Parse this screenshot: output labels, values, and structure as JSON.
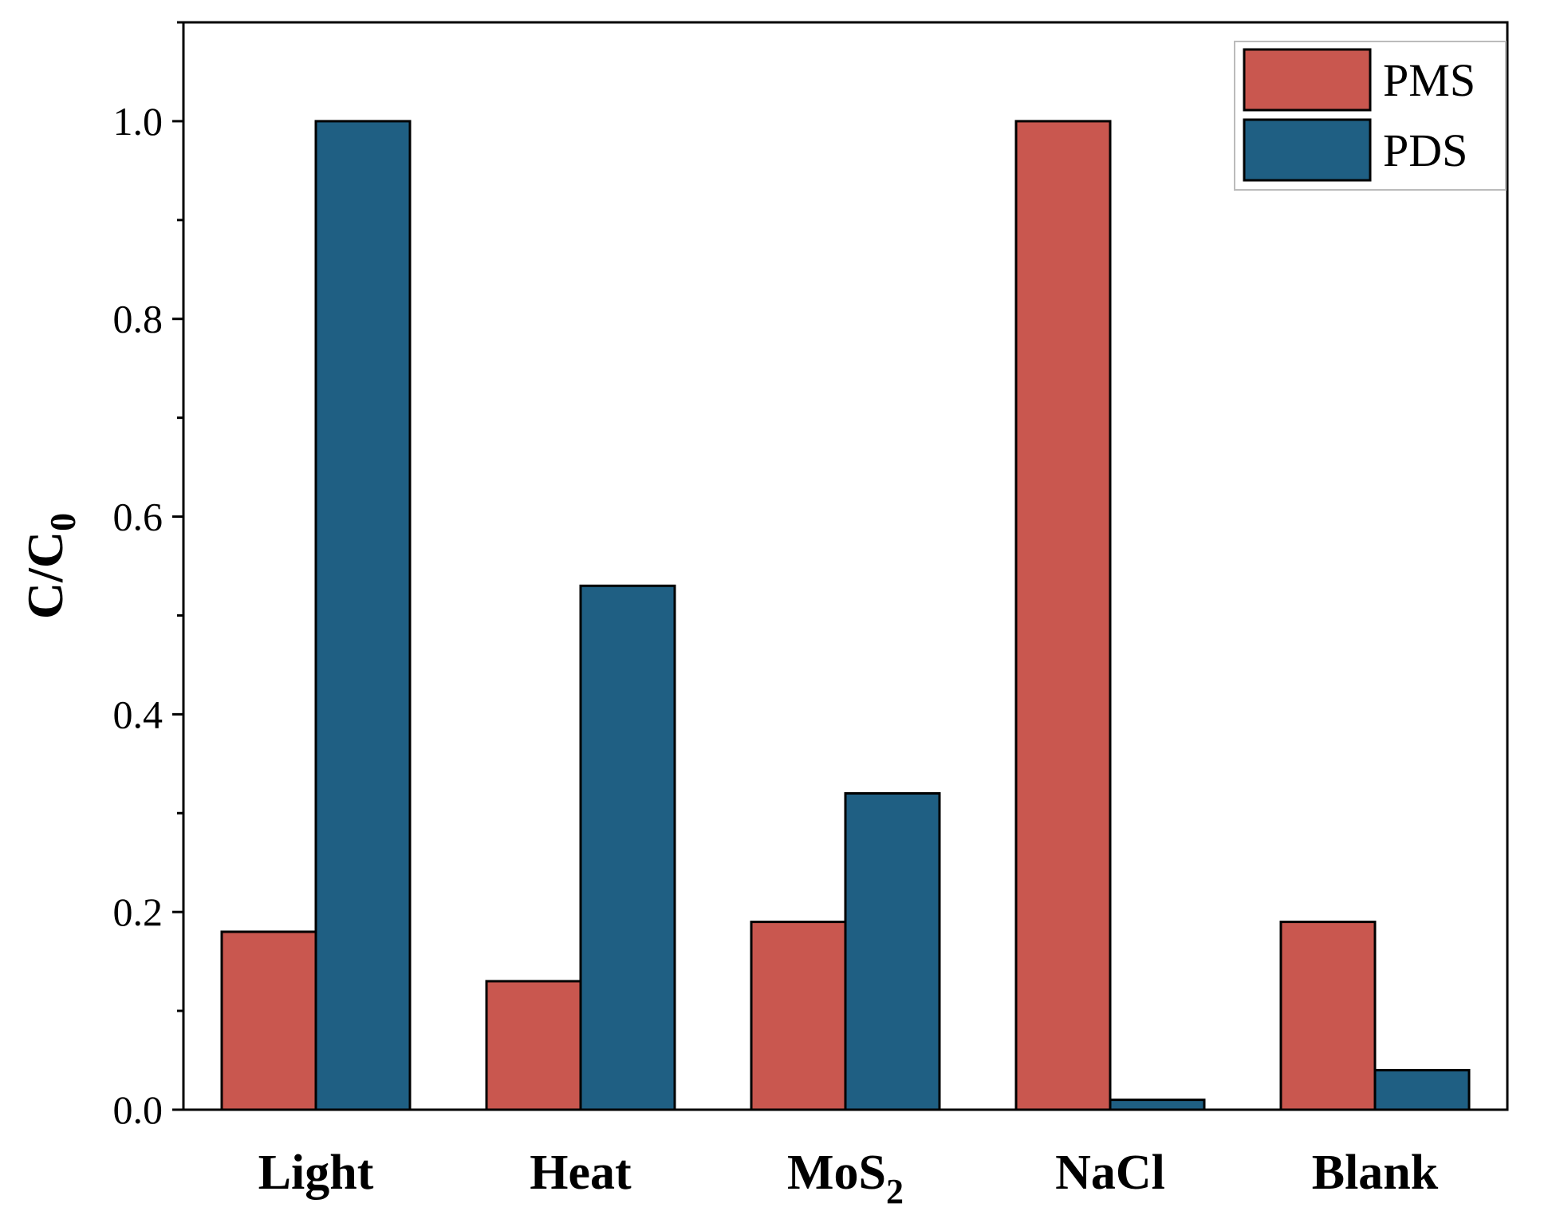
{
  "chart_data": {
    "type": "bar",
    "title": "",
    "xlabel": "",
    "ylabel": {
      "main": "C/C",
      "subscript": "0"
    },
    "ylim": [
      0.0,
      1.1
    ],
    "yticks": [
      "0.0",
      "0.2",
      "0.4",
      "0.6",
      "0.8",
      "1.0"
    ],
    "ytick_values": [
      0.0,
      0.2,
      0.4,
      0.6,
      0.8,
      1.0
    ],
    "minor_tick_step": 0.1,
    "grid": false,
    "legend_position": "top-right",
    "categories": [
      {
        "main": "Light",
        "subscript": ""
      },
      {
        "main": "Heat",
        "subscript": ""
      },
      {
        "main": "MoS",
        "subscript": "2"
      },
      {
        "main": "NaCl",
        "subscript": ""
      },
      {
        "main": "Blank",
        "subscript": ""
      }
    ],
    "series": [
      {
        "name": "PMS",
        "color": "#c9574f",
        "values": [
          0.18,
          0.13,
          0.19,
          1.0,
          0.19
        ]
      },
      {
        "name": "PDS",
        "color": "#1f5f83",
        "values": [
          1.0,
          0.53,
          0.32,
          0.01,
          0.04
        ]
      }
    ]
  }
}
